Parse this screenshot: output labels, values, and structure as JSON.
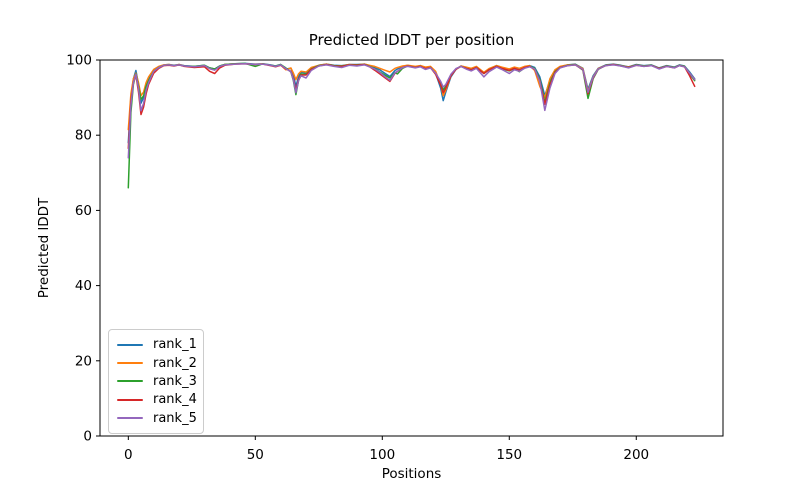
{
  "figure": {
    "title": "Predicted lDDT per position",
    "xlabel": "Positions",
    "ylabel": "Predicted lDDT"
  },
  "chart_data": {
    "type": "line",
    "title": "Predicted lDDT per position",
    "xlabel": "Positions",
    "ylabel": "Predicted lDDT",
    "xlim": [
      -11.15,
      234.15
    ],
    "ylim": [
      0,
      100
    ],
    "xticks": [
      0,
      50,
      100,
      150,
      200
    ],
    "yticks": [
      0,
      20,
      40,
      60,
      80,
      100
    ],
    "grid": false,
    "legend_position": "lower-left",
    "axis_color": "#000000",
    "x": [
      0,
      1,
      2,
      3,
      4,
      5,
      6,
      7,
      8,
      10,
      12,
      14,
      16,
      18,
      20,
      22,
      26,
      30,
      32,
      34,
      36,
      38,
      42,
      46,
      50,
      53,
      56,
      58,
      60,
      62,
      64,
      65,
      66,
      67,
      68,
      70,
      72,
      75,
      78,
      81,
      84,
      87,
      90,
      93,
      95,
      97,
      99,
      101,
      103,
      105,
      106,
      108,
      110,
      113,
      115,
      117,
      119,
      121,
      123,
      124,
      125,
      127,
      129,
      131,
      133,
      135,
      137,
      140,
      142,
      145,
      147,
      150,
      152,
      154,
      156,
      158,
      160,
      162,
      164,
      166,
      168,
      170,
      173,
      176,
      179,
      181,
      183,
      185,
      188,
      191,
      194,
      197,
      200,
      203,
      206,
      209,
      212,
      215,
      217,
      219,
      221,
      223
    ],
    "series": [
      {
        "name": "rank_1",
        "color": "#1f77b4",
        "values": [
          78,
          90,
          95,
          97.2,
          93.5,
          88.5,
          90,
          93,
          95,
          97.3,
          98.2,
          98.7,
          98.8,
          98.6,
          98.8,
          98.5,
          98.3,
          98.6,
          97.9,
          97.6,
          98.4,
          98.8,
          99,
          99.1,
          98.9,
          99,
          98.7,
          98.4,
          98.8,
          97.6,
          97.8,
          96,
          93,
          95.5,
          96.8,
          96.5,
          97.8,
          98.6,
          98.9,
          98.6,
          98.5,
          98.8,
          98.8,
          98.9,
          98.5,
          98,
          97.4,
          96.5,
          95.6,
          97.2,
          97.6,
          98.3,
          98.6,
          98.2,
          98.5,
          97.9,
          98.2,
          96.5,
          92.5,
          89.2,
          91.5,
          95.5,
          97.5,
          98.4,
          98,
          97.6,
          98.2,
          96.6,
          97.6,
          98.5,
          98,
          97.4,
          98,
          97.6,
          98.2,
          98.5,
          98,
          95.5,
          90.5,
          94.5,
          97.2,
          98.2,
          98.7,
          98.9,
          97.8,
          92.2,
          95.8,
          97.8,
          98.7,
          98.9,
          98.6,
          98.2,
          98.8,
          98.5,
          98.7,
          97.9,
          98.5,
          98.1,
          98.7,
          98.4,
          96.8,
          95
        ]
      },
      {
        "name": "rank_2",
        "color": "#ff7f0e",
        "values": [
          81.5,
          91,
          95,
          96.5,
          94,
          90.5,
          91.5,
          94,
          95.5,
          97.5,
          98.3,
          98.7,
          98.8,
          98.5,
          98.8,
          98.4,
          98.2,
          98.5,
          97.7,
          97.4,
          98.3,
          98.8,
          99,
          99,
          98.8,
          99,
          98.6,
          98.3,
          98.7,
          97.4,
          97.9,
          96.5,
          94.8,
          96.3,
          97,
          96.8,
          98,
          98.6,
          98.9,
          98.5,
          98.4,
          98.8,
          98.7,
          98.9,
          98.6,
          98.3,
          97.8,
          97.3,
          96.8,
          97.8,
          98,
          98.4,
          98.6,
          98.3,
          98.5,
          98.1,
          98.3,
          97,
          93.5,
          90.5,
          92,
          95.8,
          97.6,
          98.4,
          98.1,
          97.8,
          98.3,
          96.7,
          97.7,
          98.5,
          98.1,
          97.6,
          98.1,
          97.8,
          98.3,
          98.5,
          97.2,
          93,
          90,
          95,
          97.4,
          98.3,
          98.7,
          98.8,
          97.7,
          91.7,
          95.5,
          97.7,
          98.6,
          98.8,
          98.5,
          98.1,
          98.7,
          98.4,
          98.6,
          97.8,
          98.4,
          98,
          98.6,
          98.3,
          96.5,
          94.8
        ]
      },
      {
        "name": "rank_3",
        "color": "#2ca02c",
        "values": [
          66,
          86,
          93.5,
          96.3,
          93,
          89.5,
          90.5,
          93,
          94.5,
          97,
          98,
          98.6,
          98.7,
          98.5,
          98.7,
          98.4,
          98.3,
          98.6,
          97.9,
          97.6,
          98.4,
          98.8,
          99,
          99.1,
          98.3,
          99,
          98.6,
          98.4,
          98.8,
          97.9,
          96.8,
          94.5,
          90.8,
          94.5,
          96.3,
          96.2,
          97.6,
          98.5,
          98.8,
          98.5,
          98.4,
          98.7,
          98.7,
          98.8,
          98.3,
          97.7,
          96.8,
          96,
          95.2,
          96.6,
          96.3,
          97.8,
          98.4,
          98,
          98.3,
          97.6,
          98,
          96.3,
          94,
          92,
          93,
          96,
          97.6,
          98.3,
          97.8,
          97.4,
          98,
          96.4,
          97.4,
          98.3,
          97.7,
          97.1,
          97.7,
          96.9,
          97.9,
          98.3,
          97.8,
          94.8,
          88.8,
          93.8,
          96.9,
          98,
          98.6,
          98.8,
          97.3,
          89.8,
          95,
          97.5,
          98.6,
          98.8,
          98.5,
          98,
          98.7,
          98.4,
          98.6,
          97.7,
          98.4,
          98,
          98.6,
          98.3,
          96.3,
          94.5
        ]
      },
      {
        "name": "rank_4",
        "color": "#d62728",
        "values": [
          76.5,
          89,
          94,
          96,
          91.5,
          85.5,
          87.5,
          91,
          93.5,
          96.5,
          97.8,
          98.5,
          98.6,
          98.4,
          98.7,
          98.3,
          98,
          98.2,
          97,
          96.4,
          97.9,
          98.6,
          98.9,
          99,
          98.8,
          98.9,
          98.5,
          98.2,
          98.6,
          97.6,
          97,
          95,
          92,
          94.8,
          96,
          96,
          97.5,
          98.4,
          98.8,
          98.4,
          98.3,
          98.7,
          98.6,
          98.8,
          98.2,
          97.3,
          96.3,
          95.3,
          94.3,
          96.5,
          97,
          98,
          98.4,
          98,
          98.3,
          97.7,
          98,
          96.2,
          93.3,
          91.3,
          92.5,
          95.8,
          97.5,
          98.3,
          97.8,
          97.4,
          98,
          96.4,
          97.4,
          98.3,
          97.8,
          97.2,
          97.8,
          97.3,
          98,
          98.3,
          97.5,
          94.5,
          88.2,
          93.3,
          96.7,
          98,
          98.5,
          98.7,
          97.4,
          91,
          95.2,
          97.6,
          98.5,
          98.8,
          98.4,
          98,
          98.6,
          98.3,
          98.5,
          97.7,
          98.3,
          97.9,
          98.5,
          98.2,
          95.8,
          93
        ]
      },
      {
        "name": "rank_5",
        "color": "#9467bd",
        "values": [
          74,
          88,
          94,
          96.2,
          92.5,
          86.5,
          88.5,
          92,
          94,
          97,
          98,
          98.6,
          98.7,
          98.5,
          98.7,
          98.4,
          98.2,
          98.5,
          97.7,
          97.3,
          98.3,
          98.7,
          98.9,
          99,
          98.8,
          98.9,
          98.6,
          98.3,
          98.7,
          97.7,
          96.9,
          94.7,
          91.3,
          94.5,
          95.8,
          95.2,
          97.2,
          98.4,
          98.7,
          98.3,
          98,
          98.6,
          98.4,
          98.7,
          98.2,
          97.6,
          96.7,
          95.6,
          94.6,
          96.6,
          97,
          98,
          98.3,
          97.9,
          98.2,
          97.5,
          97.9,
          96.5,
          94.3,
          92.8,
          93.5,
          96.2,
          97.7,
          98.3,
          97.6,
          97.1,
          97.8,
          95.5,
          96.9,
          98.1,
          97.5,
          96.4,
          97.4,
          97,
          97.8,
          98.2,
          97.6,
          94.3,
          86.6,
          92.5,
          96.4,
          97.9,
          98.5,
          98.7,
          97.5,
          91.4,
          95.4,
          97.6,
          98.5,
          98.7,
          98.4,
          97.9,
          98.6,
          98.3,
          98.5,
          97.6,
          98.3,
          97.9,
          98.5,
          98.2,
          96.5,
          94.8
        ]
      }
    ]
  }
}
